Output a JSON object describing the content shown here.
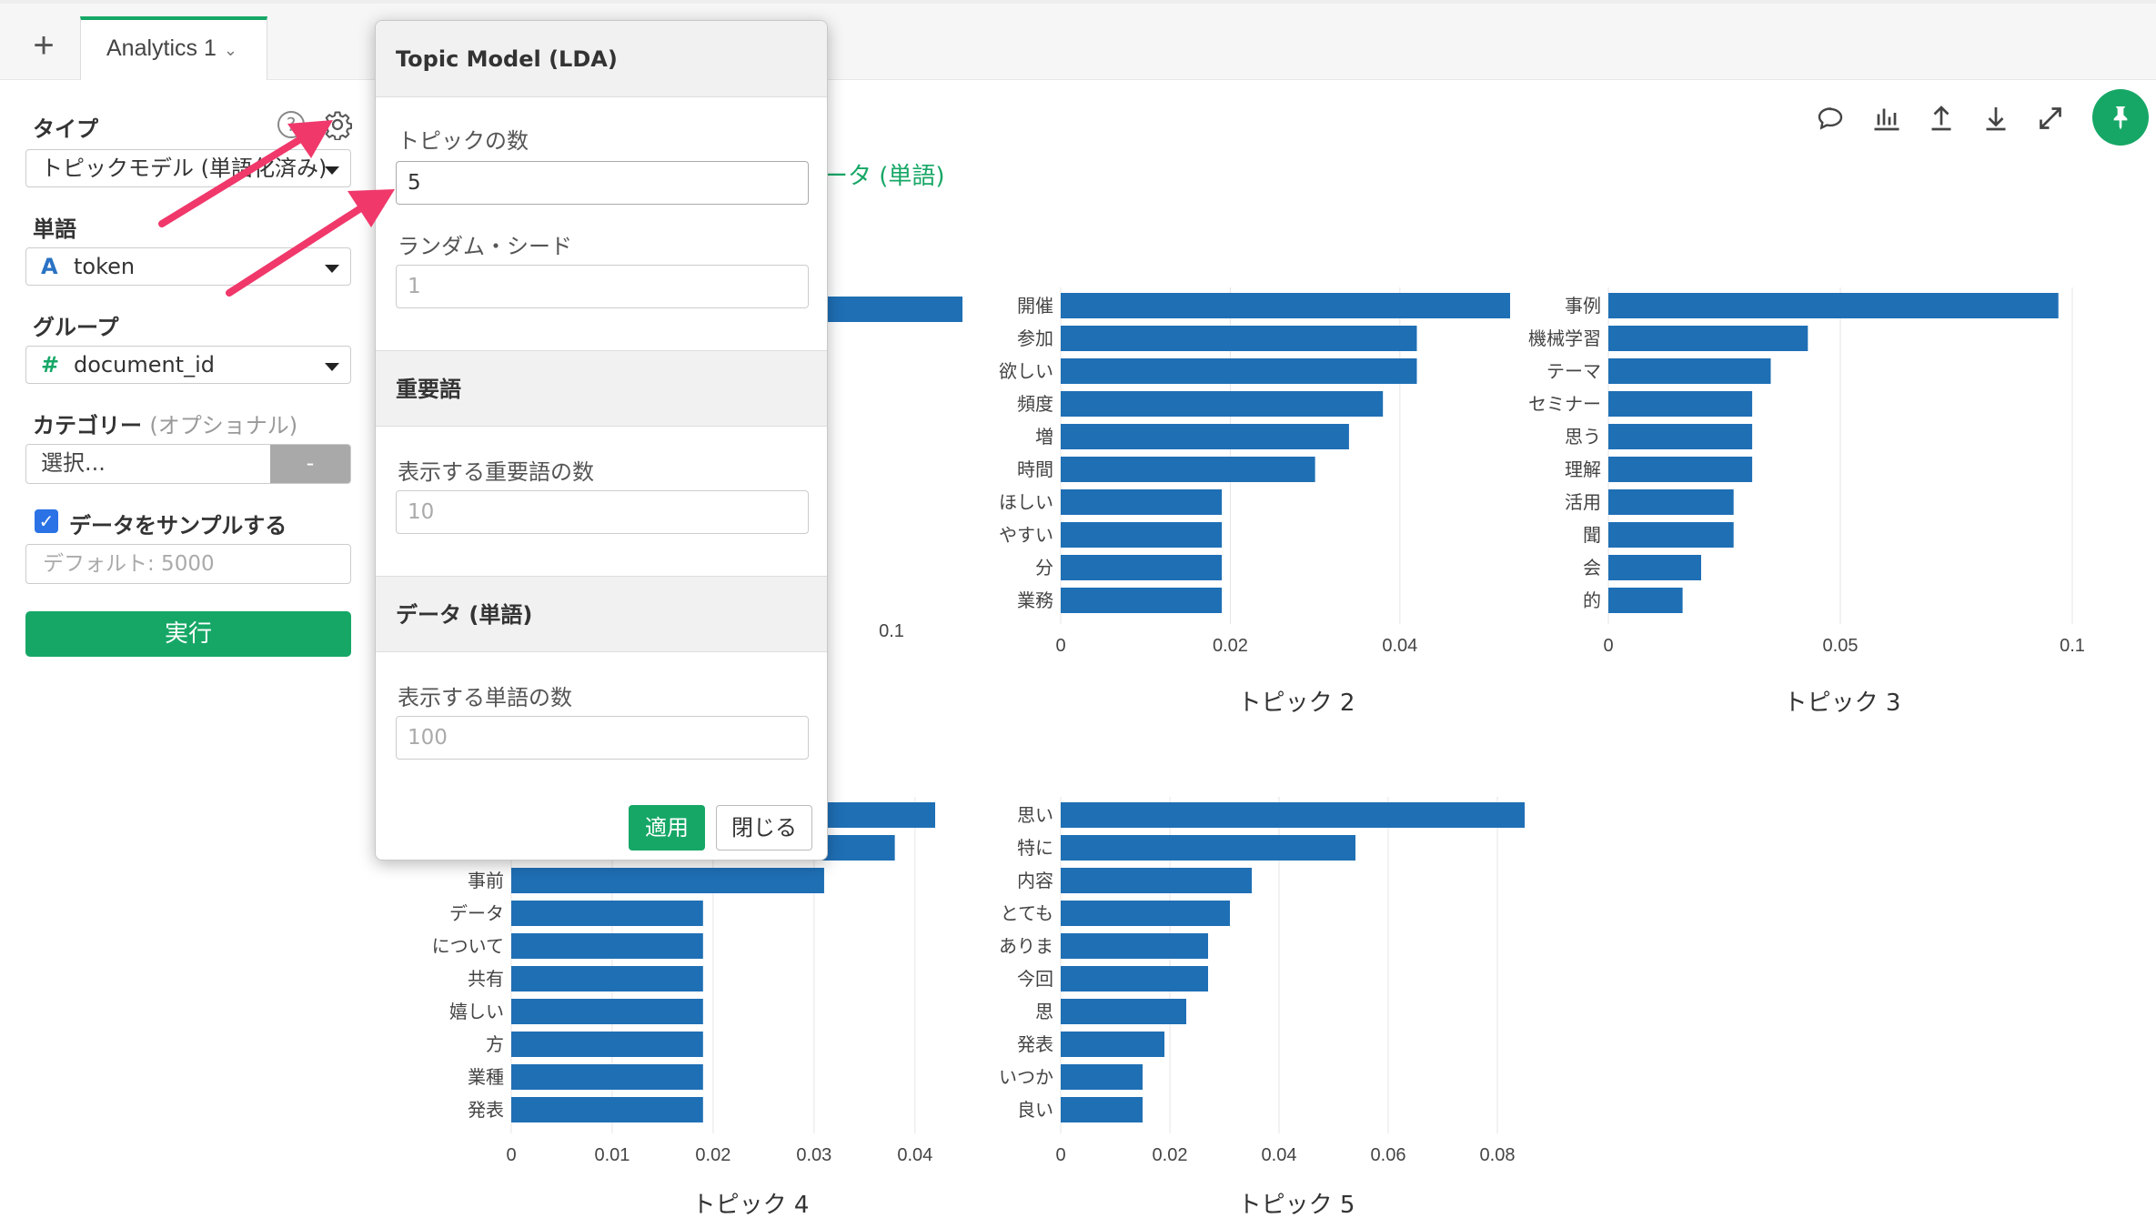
{
  "tabs": {
    "add_label": "+",
    "active_label": "Analytics 1"
  },
  "left_panel": {
    "type_label": "タイプ",
    "type_value": "トピックモデル (単語化済み)",
    "word_label": "単語",
    "word_icon": "A",
    "word_value": "token",
    "group_label": "グループ",
    "group_icon": "#",
    "group_value": "document_id",
    "category_label": "カテゴリー",
    "category_optional": "(オプショナル)",
    "category_placeholder": "選択...",
    "category_button": "-",
    "sample_label": "データをサンプルする",
    "sample_placeholder": "デフォルト: 5000",
    "run_label": "実行",
    "help_icon": "?"
  },
  "partial_title": "ータ (単語)",
  "modal": {
    "title": "Topic Model (LDA)",
    "num_topics_label": "トピックの数",
    "num_topics_value": "5",
    "random_seed_label": "ランダム・シード",
    "random_seed_placeholder": "1",
    "section_important": "重要語",
    "num_important_label": "表示する重要語の数",
    "num_important_placeholder": "10",
    "section_data": "データ (単語)",
    "num_words_label": "表示する単語の数",
    "num_words_placeholder": "100",
    "apply_label": "適用",
    "close_label": "閉じる"
  },
  "toolbar": {
    "icons": [
      "comment-icon",
      "chart-icon",
      "upload-icon",
      "download-icon",
      "expand-icon",
      "pin-icon"
    ],
    "accent": "#16a766"
  },
  "chart_data": [
    {
      "type": "bar",
      "orientation": "horizontal",
      "title": "",
      "xtick_labels": [
        "0.1"
      ],
      "categories": [],
      "values": [],
      "visible_fragment": "top bar partially hidden behind modal, x ticks partially visible"
    },
    {
      "type": "bar",
      "orientation": "horizontal",
      "title": "トピック 2",
      "categories": [
        "開催",
        "参加",
        "欲しい",
        "頻度",
        "増",
        "時間",
        "ほしい",
        "やすい",
        "分",
        "業務"
      ],
      "values": [
        0.053,
        0.042,
        0.042,
        0.038,
        0.034,
        0.03,
        0.019,
        0.019,
        0.019,
        0.019
      ],
      "xlim": [
        0,
        0.053
      ],
      "xticks": [
        0,
        0.02,
        0.04
      ],
      "xtick_labels": [
        "0",
        "0.02",
        "0.04"
      ],
      "color": "#1f6fb5"
    },
    {
      "type": "bar",
      "orientation": "horizontal",
      "title": "トピック 3",
      "categories": [
        "事例",
        "機械学習",
        "テーマ",
        "セミナー",
        "思う",
        "理解",
        "活用",
        "聞",
        "会",
        "的"
      ],
      "values": [
        0.097,
        0.043,
        0.035,
        0.031,
        0.031,
        0.031,
        0.027,
        0.027,
        0.02,
        0.016
      ],
      "xlim": [
        0,
        0.1
      ],
      "xticks": [
        0,
        0.05,
        0.1
      ],
      "xtick_labels": [
        "0",
        "0.05",
        "0.1"
      ],
      "color": "#1f6fb5"
    },
    {
      "type": "bar",
      "orientation": "horizontal",
      "title": "トピック 4",
      "categories": [
        "",
        "",
        "事前",
        "データ",
        "について",
        "共有",
        "嬉しい",
        "方",
        "業種",
        "発表"
      ],
      "values": [
        0.042,
        0.038,
        0.031,
        0.019,
        0.019,
        0.019,
        0.019,
        0.019,
        0.019,
        0.019
      ],
      "xlim": [
        0,
        0.042
      ],
      "xticks": [
        0,
        0.01,
        0.02,
        0.03,
        0.04
      ],
      "xtick_labels": [
        "0",
        "0.01",
        "0.02",
        "0.03",
        "0.04"
      ],
      "color": "#1f6fb5"
    },
    {
      "type": "bar",
      "orientation": "horizontal",
      "title": "トピック 5",
      "categories": [
        "思い",
        "特に",
        "内容",
        "とても",
        "ありま",
        "今回",
        "思",
        "発表",
        "いつか",
        "良い"
      ],
      "values": [
        0.085,
        0.054,
        0.035,
        0.031,
        0.027,
        0.027,
        0.023,
        0.019,
        0.015,
        0.015
      ],
      "xlim": [
        0,
        0.085
      ],
      "xticks": [
        0,
        0.02,
        0.04,
        0.06,
        0.08
      ],
      "xtick_labels": [
        "0",
        "0.02",
        "0.04",
        "0.06",
        "0.08"
      ],
      "color": "#1f6fb5"
    }
  ]
}
